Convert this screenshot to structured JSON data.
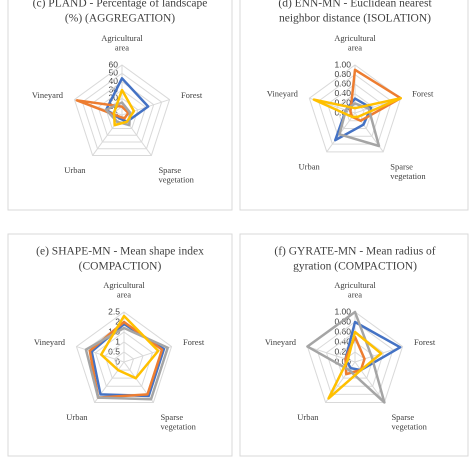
{
  "chart_data": [
    {
      "type": "radar",
      "title": [
        "(c) PLAND - Percentage of landscape",
        "(%) (AGGREGATION)"
      ],
      "categories": [
        "Agricultural area",
        "Forest",
        "Sparse vegetation",
        "Urban",
        "Vineyard"
      ],
      "ylim": [
        0,
        60
      ],
      "yticks": [
        0,
        10,
        20,
        30,
        40,
        50,
        60
      ],
      "series": [
        {
          "color": "#4472c4",
          "values": [
            44,
            33,
            10,
            5,
            20
          ]
        },
        {
          "color": "#ed7d31",
          "values": [
            10,
            8,
            5,
            3,
            57
          ]
        },
        {
          "color": "#a5a5a5",
          "values": [
            15,
            10,
            15,
            10,
            20
          ]
        },
        {
          "color": "#ffc000",
          "values": [
            30,
            15,
            10,
            15,
            10
          ]
        }
      ]
    },
    {
      "type": "radar",
      "title": [
        "(d) ENN-MN - Euclidean nearest",
        "neighbor distance (ISOLATION)"
      ],
      "categories": [
        "Agricultural area",
        "Forest",
        "Sparse vegetation",
        "Urban",
        "Vineyard"
      ],
      "ylim": [
        0,
        1
      ],
      "yticks": [
        {
          "value": 0,
          "label": "0.00"
        },
        {
          "value": 0.2,
          "label": "0.20"
        },
        {
          "value": 0.4,
          "label": "0.40"
        },
        {
          "value": 0.6,
          "label": "0.60"
        },
        {
          "value": 0.8,
          "label": "0.80"
        },
        {
          "value": 1,
          "label": "1.00"
        }
      ],
      "series": [
        {
          "color": "#4472c4",
          "values": [
            0.3,
            0.35,
            0.3,
            0.7,
            0.2
          ]
        },
        {
          "color": "#ed7d31",
          "values": [
            0.9,
            1.0,
            0.2,
            0.1,
            0.1
          ]
        },
        {
          "color": "#a5a5a5",
          "values": [
            0.2,
            0.3,
            0.85,
            0.55,
            0.2
          ]
        },
        {
          "color": "#ffc000",
          "values": [
            0.1,
            1.0,
            0.1,
            0.1,
            0.9
          ]
        }
      ]
    },
    {
      "type": "radar",
      "title": [
        "(e) SHAPE-MN - Mean shape index",
        "(COMPACTION)"
      ],
      "categories": [
        "Agricultural area",
        "Forest",
        "Sparse vegetation",
        "Urban",
        "Vineyard"
      ],
      "ylim": [
        0,
        2.5
      ],
      "yticks": [
        0,
        0.5,
        1,
        1.5,
        2,
        2.5
      ],
      "series": [
        {
          "color": "#4472c4",
          "values": [
            1.9,
            2.1,
            2.1,
            2.0,
            1.7
          ]
        },
        {
          "color": "#ed7d31",
          "values": [
            2.0,
            2.0,
            2.0,
            2.2,
            1.8
          ]
        },
        {
          "color": "#a5a5a5",
          "values": [
            1.7,
            2.3,
            2.3,
            2.2,
            2.0
          ]
        },
        {
          "color": "#ffc000",
          "values": [
            2.3,
            1.8,
            1.0,
            0.5,
            1.2
          ]
        }
      ]
    },
    {
      "type": "radar",
      "title": [
        "(f) GYRATE-MN - Mean radius of",
        "gyration (COMPACTION)"
      ],
      "categories": [
        "Agricultural area",
        "Forest",
        "Sparse vegetation",
        "Urban",
        "Vineyard"
      ],
      "ylim": [
        0,
        1
      ],
      "yticks": [
        {
          "value": 0,
          "label": "0.00"
        },
        {
          "value": 0.2,
          "label": "0.20"
        },
        {
          "value": 0.4,
          "label": "0.40"
        },
        {
          "value": 0.6,
          "label": "0.60"
        },
        {
          "value": 0.8,
          "label": "0.80"
        },
        {
          "value": 1,
          "label": "1.00"
        }
      ],
      "series": [
        {
          "color": "#4472c4",
          "values": [
            0.8,
            0.95,
            0.2,
            0.15,
            0.2
          ]
        },
        {
          "color": "#ed7d31",
          "values": [
            0.5,
            0.2,
            0.2,
            0.3,
            0.2
          ]
        },
        {
          "color": "#a5a5a5",
          "values": [
            1.0,
            0.35,
            1.0,
            0.2,
            1.0
          ]
        },
        {
          "color": "#ffc000",
          "values": [
            0.6,
            0.55,
            0.2,
            0.9,
            0.15
          ]
        }
      ]
    }
  ]
}
